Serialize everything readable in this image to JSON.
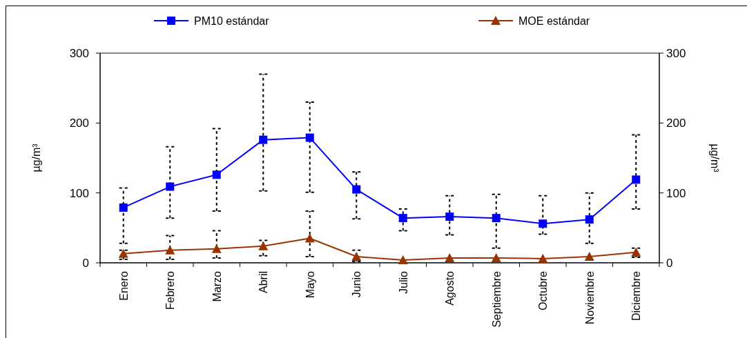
{
  "chart_data": {
    "type": "line",
    "categories": [
      "Enero",
      "Febrero",
      "Marzo",
      "Abril",
      "Mayo",
      "Junio",
      "Julio",
      "Agosto",
      "Septiembre",
      "Octubre",
      "Noviembre",
      "Diciembre"
    ],
    "series": [
      {
        "name": "PM10 estándar",
        "color": "#0000ff",
        "marker": "square",
        "values": [
          79,
          109,
          126,
          176,
          179,
          105,
          64,
          66,
          64,
          56,
          62,
          119
        ],
        "errors": [
          [
            28,
            107
          ],
          [
            64,
            166
          ],
          [
            74,
            192
          ],
          [
            103,
            270
          ],
          [
            101,
            230
          ],
          [
            63,
            130
          ],
          [
            46,
            77
          ],
          [
            40,
            96
          ],
          [
            21,
            98
          ],
          [
            41,
            96
          ],
          [
            28,
            100
          ],
          [
            77,
            183
          ]
        ]
      },
      {
        "name": "MOE estándar",
        "color": "#993300",
        "marker": "triangle",
        "values": [
          13,
          18,
          20,
          24,
          35,
          9,
          4,
          7,
          7,
          6,
          9,
          15
        ],
        "errors": [
          [
            5,
            18
          ],
          [
            5,
            39
          ],
          [
            7,
            46
          ],
          [
            10,
            32
          ],
          [
            9,
            74
          ],
          [
            2,
            18
          ],
          null,
          null,
          null,
          null,
          null,
          [
            8,
            21
          ]
        ]
      }
    ],
    "ylim": [
      0,
      300
    ],
    "yticks": [
      0,
      100,
      200,
      300
    ],
    "y2lim": [
      0,
      300
    ],
    "y2ticks": [
      0,
      100,
      200,
      300
    ],
    "ylabel": "µg/m³",
    "y2label": "µg/m³",
    "legend": "top",
    "grid": false
  }
}
